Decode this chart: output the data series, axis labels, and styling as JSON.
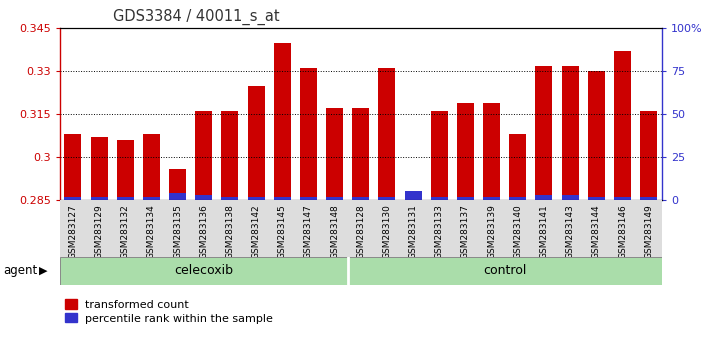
{
  "title": "GDS3384 / 40011_s_at",
  "samples": [
    "GSM283127",
    "GSM283129",
    "GSM283132",
    "GSM283134",
    "GSM283135",
    "GSM283136",
    "GSM283138",
    "GSM283142",
    "GSM283145",
    "GSM283147",
    "GSM283148",
    "GSM283128",
    "GSM283130",
    "GSM283131",
    "GSM283133",
    "GSM283137",
    "GSM283139",
    "GSM283140",
    "GSM283141",
    "GSM283143",
    "GSM283144",
    "GSM283146",
    "GSM283149"
  ],
  "red_values": [
    0.308,
    0.307,
    0.306,
    0.308,
    0.296,
    0.316,
    0.316,
    0.325,
    0.34,
    0.331,
    0.317,
    0.317,
    0.331,
    0.287,
    0.316,
    0.319,
    0.319,
    0.308,
    0.332,
    0.332,
    0.33,
    0.337,
    0.316
  ],
  "blue_pct": [
    2,
    2,
    2,
    2,
    4,
    3,
    2,
    2,
    2,
    2,
    2,
    2,
    2,
    5,
    2,
    2,
    2,
    2,
    3,
    3,
    2,
    2,
    2
  ],
  "celecoxib_count": 11,
  "control_count": 12,
  "ymin": 0.285,
  "ymax": 0.345,
  "yticks": [
    0.285,
    0.3,
    0.315,
    0.33,
    0.345
  ],
  "right_yticks": [
    0,
    25,
    50,
    75,
    100
  ],
  "bar_color_red": "#cc0000",
  "bar_color_blue": "#3333cc",
  "celecoxib_bg": "#aaddaa",
  "control_bg": "#aaddaa",
  "legend_red": "transformed count",
  "legend_blue": "percentile rank within the sample",
  "agent_label": "agent",
  "celecoxib_label": "celecoxib",
  "control_label": "control",
  "left_axis_color": "#cc0000",
  "right_axis_color": "#3333cc",
  "bar_width": 0.65
}
